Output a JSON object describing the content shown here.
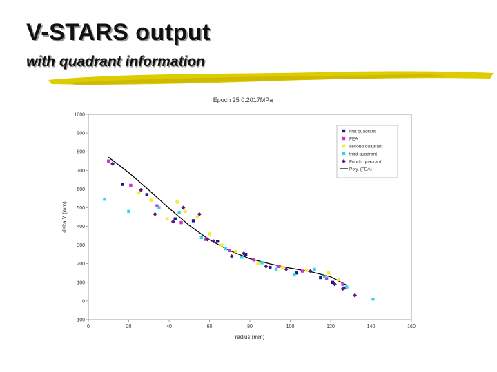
{
  "slide": {
    "title": "V-STARS output",
    "subtitle": "with quadrant information"
  },
  "colors": {
    "first": "#1a1a8a",
    "fea": "#d030d0",
    "second": "#f0f020",
    "third": "#30d8e8",
    "fourth": "#5a1a7a",
    "fit": "#000000",
    "accent": "#ddcc00"
  },
  "chart_data": {
    "type": "scatter",
    "title": "Epoch 25 0.2017MPa",
    "xlabel": "radius (mm)",
    "ylabel": "delta Y (mm)",
    "xlim": [
      0,
      160
    ],
    "ylim": [
      -100,
      1000
    ],
    "x_ticks": [
      "0",
      "20",
      "40",
      "60",
      "80",
      "100",
      "120",
      "140",
      "160"
    ],
    "y_ticks": [
      "-100",
      "0",
      "100",
      "200",
      "300",
      "400",
      "500",
      "600",
      "700",
      "800",
      "900",
      "1000"
    ],
    "legend_position": "top-right",
    "series": [
      {
        "name": "first quadrant",
        "marker": "square",
        "color_key": "first",
        "points": [
          [
            17,
            625
          ],
          [
            29,
            570
          ],
          [
            43,
            440
          ],
          [
            52,
            430
          ],
          [
            64,
            320
          ],
          [
            78,
            250
          ],
          [
            90,
            180
          ],
          [
            103,
            150
          ],
          [
            115,
            125
          ],
          [
            121,
            100
          ],
          [
            127,
            70
          ]
        ]
      },
      {
        "name": "FEA",
        "marker": "square",
        "color_key": "fea",
        "points": [
          [
            10,
            750
          ],
          [
            21,
            620
          ],
          [
            34,
            510
          ],
          [
            46,
            420
          ],
          [
            58,
            330
          ],
          [
            70,
            270
          ],
          [
            82,
            220
          ],
          [
            94,
            185
          ],
          [
            106,
            160
          ],
          [
            118,
            120
          ],
          [
            126,
            90
          ]
        ]
      },
      {
        "name": "second quadrant",
        "marker": "square",
        "color_key": "second",
        "points": [
          [
            25,
            580
          ],
          [
            31,
            540
          ],
          [
            39,
            440
          ],
          [
            44,
            530
          ],
          [
            48,
            480
          ],
          [
            54,
            450
          ],
          [
            60,
            360
          ],
          [
            66,
            300
          ],
          [
            73,
            265
          ],
          [
            84,
            200
          ],
          [
            96,
            180
          ],
          [
            108,
            165
          ],
          [
            119,
            150
          ],
          [
            124,
            115
          ]
        ]
      },
      {
        "name": "third quadrant",
        "marker": "square",
        "color_key": "third",
        "points": [
          [
            8,
            545
          ],
          [
            20,
            480
          ],
          [
            35,
            500
          ],
          [
            45,
            475
          ],
          [
            56,
            340
          ],
          [
            68,
            280
          ],
          [
            76,
            235
          ],
          [
            86,
            205
          ],
          [
            93,
            170
          ],
          [
            102,
            140
          ],
          [
            112,
            170
          ],
          [
            117,
            130
          ],
          [
            128,
            75
          ],
          [
            141,
            10
          ]
        ]
      },
      {
        "name": "Fourth quadrant",
        "marker": "diamond",
        "color_key": "fourth",
        "points": [
          [
            12,
            735
          ],
          [
            26,
            595
          ],
          [
            33,
            465
          ],
          [
            42,
            425
          ],
          [
            47,
            500
          ],
          [
            55,
            465
          ],
          [
            59,
            330
          ],
          [
            62,
            320
          ],
          [
            71,
            240
          ],
          [
            77,
            255
          ],
          [
            88,
            185
          ],
          [
            98,
            170
          ],
          [
            110,
            160
          ],
          [
            122,
            90
          ],
          [
            126,
            65
          ],
          [
            132,
            30
          ]
        ]
      }
    ],
    "fit_line": {
      "name": "Poly. (FEA)",
      "color_key": "fit",
      "points": [
        [
          10,
          770
        ],
        [
          20,
          688
        ],
        [
          30,
          594
        ],
        [
          40,
          497
        ],
        [
          50,
          405
        ],
        [
          60,
          328
        ],
        [
          70,
          270
        ],
        [
          80,
          227
        ],
        [
          90,
          199
        ],
        [
          100,
          176
        ],
        [
          110,
          157
        ],
        [
          120,
          130
        ],
        [
          128,
          85
        ]
      ]
    }
  }
}
